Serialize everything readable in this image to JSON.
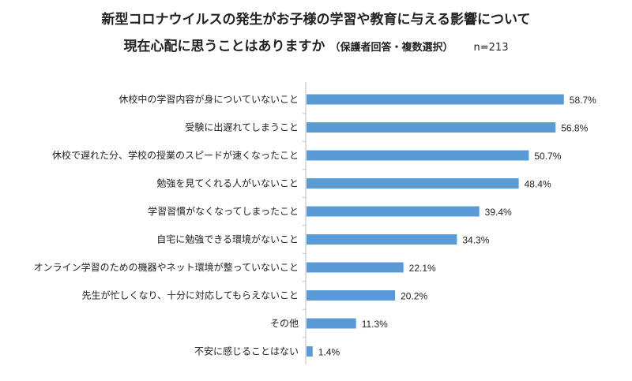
{
  "chart_data": {
    "type": "bar",
    "orientation": "horizontal",
    "title": "新型コロナウイルスの発生がお子様の学習や教育に与える影響について",
    "subtitle": "現在心配に思うことはありますか",
    "subtitle_note": "（保護者回答・複数選択）",
    "sample_size": "n=213",
    "categories": [
      "休校中の学習内容が身についていないこと",
      "受験に出遅れてしまうこと",
      "休校で遅れた分、学校の授業のスピードが速くなったこと",
      "勉強を見てくれる人がいないこと",
      "学習習慣がなくなってしまったこと",
      "自宅に勉強できる環境がないこと",
      "オンライン学習のための機器やネット環境が整っていないこと",
      "先生が忙しくなり、十分に対応してもらえないこと",
      "その他",
      "不安に感じることはない"
    ],
    "values": [
      58.7,
      56.8,
      50.7,
      48.4,
      39.4,
      34.3,
      22.1,
      20.2,
      11.3,
      1.4
    ],
    "value_labels": [
      "58.7%",
      "56.8%",
      "50.7%",
      "48.4%",
      "39.4%",
      "34.3%",
      "22.1%",
      "20.2%",
      "11.3%",
      "1.4%"
    ],
    "xlim": [
      0,
      100
    ],
    "grid": false,
    "bar_color": "#5b9bd5",
    "axis_color": "#bfbfbf"
  }
}
